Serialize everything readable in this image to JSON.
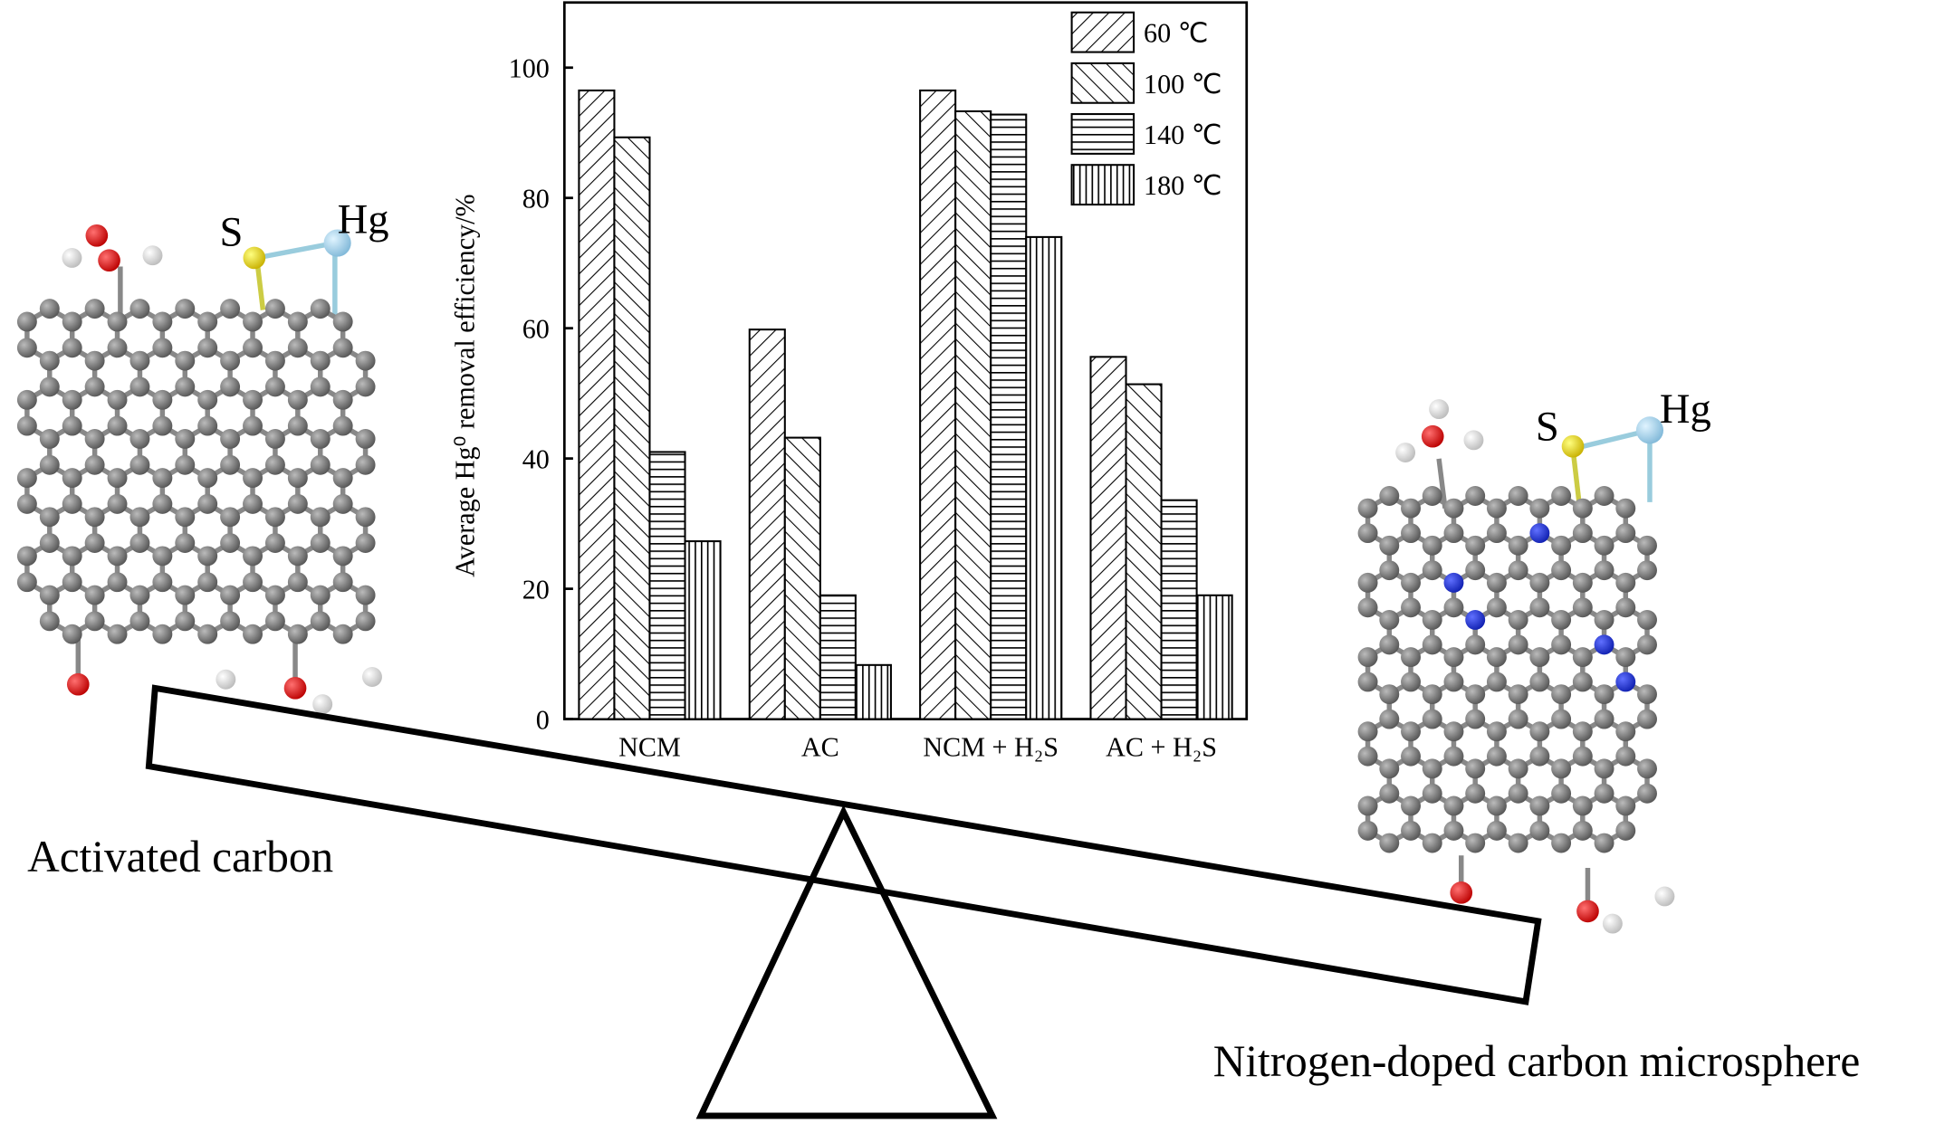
{
  "chart_data": {
    "type": "bar",
    "y_label": "Average Hg⁰ removal efficiency/%",
    "categories": [
      "NCM",
      "AC",
      "NCM + H₂S",
      "AC + H₂S"
    ],
    "series": [
      {
        "name": "60 ℃",
        "hatch": "/",
        "color": "#000000",
        "values": [
          96.5,
          59.8,
          96.5,
          55.6
        ]
      },
      {
        "name": "100 ℃",
        "hatch": "\\",
        "color": "#000000",
        "values": [
          89.3,
          43.2,
          93.3,
          51.4
        ]
      },
      {
        "name": "140 ℃",
        "hatch": "-",
        "color": "#000000",
        "values": [
          41,
          19,
          92.8,
          33.6
        ]
      },
      {
        "name": "180 ℃",
        "hatch": "|",
        "color": "#000000",
        "values": [
          27.3,
          8.3,
          74,
          19
        ]
      }
    ],
    "ylim": [
      0,
      110
    ],
    "yticks": [
      0,
      20,
      40,
      60,
      80,
      100
    ],
    "legend": "upper right"
  },
  "labels": {
    "left_material": "Activated carbon",
    "right_material": "Nitrogen-doped carbon microsphere",
    "left_s": "S",
    "left_hg": "Hg",
    "right_s": "S",
    "right_hg": "Hg"
  }
}
